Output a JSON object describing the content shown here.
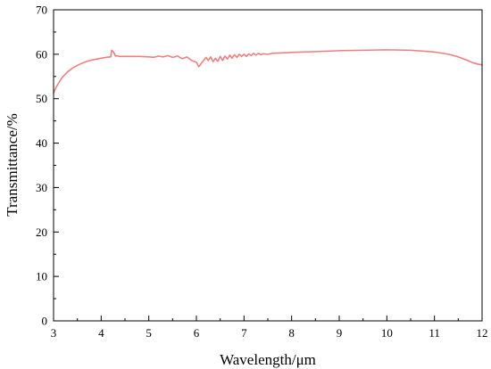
{
  "chart_data": {
    "type": "line",
    "title": "",
    "xlabel": "Wavelength/μm",
    "ylabel": "Transmittance/%",
    "xlim": [
      3,
      12
    ],
    "ylim": [
      0,
      70
    ],
    "x_ticks": [
      "3",
      "4",
      "5",
      "6",
      "7",
      "8",
      "9",
      "10",
      "11",
      "12"
    ],
    "y_ticks": [
      "0",
      "10",
      "20",
      "30",
      "40",
      "50",
      "60",
      "70"
    ],
    "grid": false,
    "legend": "none",
    "series": [
      {
        "color": "#f08080",
        "points": [
          [
            3.0,
            51.3
          ],
          [
            3.05,
            52.5
          ],
          [
            3.1,
            53.4
          ],
          [
            3.15,
            54.3
          ],
          [
            3.2,
            55.0
          ],
          [
            3.3,
            56.1
          ],
          [
            3.4,
            56.9
          ],
          [
            3.5,
            57.5
          ],
          [
            3.6,
            58.0
          ],
          [
            3.7,
            58.4
          ],
          [
            3.8,
            58.7
          ],
          [
            3.9,
            58.9
          ],
          [
            4.0,
            59.1
          ],
          [
            4.1,
            59.3
          ],
          [
            4.2,
            59.4
          ],
          [
            4.22,
            60.9
          ],
          [
            4.26,
            60.5
          ],
          [
            4.3,
            59.6
          ],
          [
            4.35,
            59.6
          ],
          [
            4.4,
            59.5
          ],
          [
            4.6,
            59.5
          ],
          [
            4.8,
            59.5
          ],
          [
            5.0,
            59.4
          ],
          [
            5.1,
            59.3
          ],
          [
            5.2,
            59.6
          ],
          [
            5.3,
            59.4
          ],
          [
            5.4,
            59.7
          ],
          [
            5.5,
            59.3
          ],
          [
            5.6,
            59.6
          ],
          [
            5.7,
            59.0
          ],
          [
            5.8,
            59.4
          ],
          [
            5.9,
            58.6
          ],
          [
            6.0,
            58.2
          ],
          [
            6.05,
            57.2
          ],
          [
            6.1,
            57.9
          ],
          [
            6.15,
            58.6
          ],
          [
            6.2,
            59.3
          ],
          [
            6.25,
            58.6
          ],
          [
            6.3,
            59.4
          ],
          [
            6.35,
            58.3
          ],
          [
            6.4,
            59.1
          ],
          [
            6.45,
            58.4
          ],
          [
            6.5,
            59.5
          ],
          [
            6.55,
            58.6
          ],
          [
            6.6,
            59.6
          ],
          [
            6.65,
            58.9
          ],
          [
            6.7,
            59.8
          ],
          [
            6.75,
            59.1
          ],
          [
            6.8,
            59.9
          ],
          [
            6.85,
            59.3
          ],
          [
            6.9,
            60.0
          ],
          [
            6.95,
            59.5
          ],
          [
            7.0,
            60.0
          ],
          [
            7.05,
            59.5
          ],
          [
            7.1,
            60.1
          ],
          [
            7.15,
            59.7
          ],
          [
            7.2,
            60.2
          ],
          [
            7.25,
            59.8
          ],
          [
            7.3,
            60.2
          ],
          [
            7.35,
            59.9
          ],
          [
            7.4,
            60.1
          ],
          [
            7.5,
            60.0
          ],
          [
            7.6,
            60.2
          ],
          [
            7.8,
            60.3
          ],
          [
            8.0,
            60.4
          ],
          [
            8.5,
            60.6
          ],
          [
            9.0,
            60.8
          ],
          [
            9.5,
            60.9
          ],
          [
            10.0,
            61.0
          ],
          [
            10.5,
            60.9
          ],
          [
            11.0,
            60.5
          ],
          [
            11.3,
            60.0
          ],
          [
            11.5,
            59.4
          ],
          [
            11.7,
            58.6
          ],
          [
            11.8,
            58.1
          ],
          [
            11.9,
            57.8
          ],
          [
            12.0,
            57.6
          ]
        ]
      }
    ]
  }
}
